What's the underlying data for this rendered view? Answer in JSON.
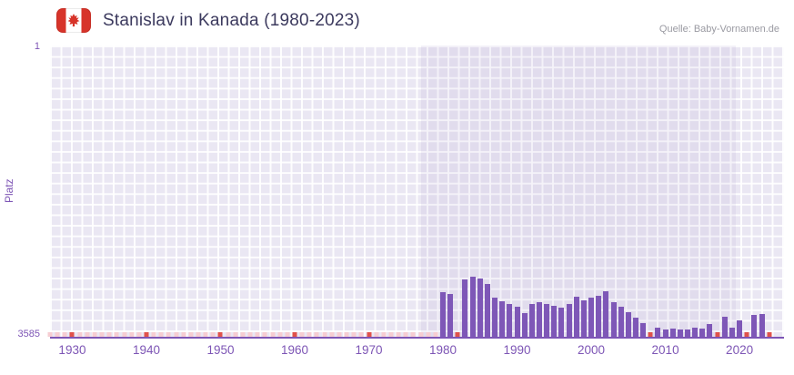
{
  "header": {
    "title": "Stanislav in Kanada (1980-2023)",
    "source": "Quelle: Baby-Vornamen.de",
    "flag_icon": "canada-flag"
  },
  "axes": {
    "y_label": "Platz",
    "y_top_tick": "1",
    "y_bottom_tick": "3585",
    "x_tick_labels": [
      "1930",
      "1940",
      "1950",
      "1960",
      "1970",
      "1980",
      "1990",
      "2000",
      "2010",
      "2020"
    ]
  },
  "colors": {
    "title": "#3c3a5e",
    "source": "#9a9aa2",
    "axis": "#7d55b5",
    "bar": "#7e57b7",
    "plot_bg": "#eae7f3",
    "grid_line": "rgba(255,255,255,0.9)",
    "band_tint": "rgba(114,78,171,0.07)",
    "accent_marker": "#e0524b",
    "faint_marker": "#f6cdd2",
    "flag_red": "#d7342a"
  },
  "chart_data": {
    "type": "bar",
    "title": "Stanislav in Kanada (1980-2023)",
    "xlabel": "",
    "ylabel": "Platz",
    "y_axis": {
      "top": 1,
      "bottom": 3585,
      "inverted": true
    },
    "x_range": [
      1927,
      2026
    ],
    "x_ticks": [
      1930,
      1940,
      1950,
      1960,
      1970,
      1980,
      1990,
      2000,
      2010,
      2020
    ],
    "highlight_band_years": [
      1977,
      2019.5
    ],
    "grid": true,
    "legend": "none",
    "years": [
      1980,
      1981,
      1982,
      1983,
      1984,
      1985,
      1986,
      1987,
      1988,
      1989,
      1990,
      1991,
      1992,
      1993,
      1994,
      1995,
      1996,
      1997,
      1998,
      1999,
      2000,
      2001,
      2002,
      2003,
      2004,
      2005,
      2006,
      2007,
      2008,
      2009,
      2010,
      2011,
      2012,
      2013,
      2014,
      2015,
      2016,
      2017,
      2018,
      2019,
      2020,
      2021,
      2022,
      2023
    ],
    "ranks": [
      3040,
      3060,
      null,
      2880,
      2850,
      2870,
      2930,
      3100,
      3150,
      3180,
      3210,
      3290,
      3180,
      3160,
      3180,
      3200,
      3230,
      3180,
      3090,
      3140,
      3100,
      3080,
      3020,
      3160,
      3220,
      3280,
      3350,
      3420,
      null,
      3470,
      3500,
      3480,
      3500,
      3490,
      3470,
      3480,
      3430,
      null,
      3340,
      3470,
      3380,
      null,
      3320,
      3300
    ],
    "no_data_marker_years_faint_range": [
      1927,
      1979
    ],
    "no_data_marker_years_accent": [
      1930,
      1940,
      1950,
      1960,
      1970,
      1982,
      2008,
      2017,
      2021,
      2024
    ]
  }
}
